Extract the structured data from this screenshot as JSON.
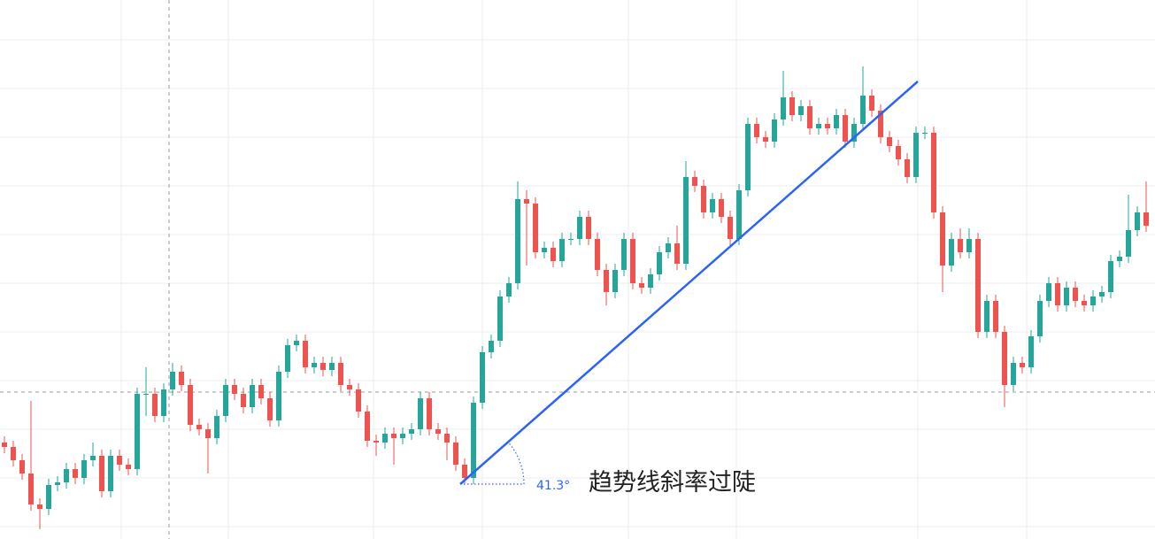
{
  "chart_data": {
    "type": "candlestick",
    "open": [
      100,
      95,
      80,
      65,
      30,
      25,
      52,
      55,
      70,
      60,
      80,
      85,
      45,
      85,
      75,
      70,
      155,
      155,
      130,
      160,
      180,
      165,
      120,
      115,
      105,
      130,
      165,
      155,
      140,
      165,
      150,
      125,
      180,
      210,
      215,
      185,
      190,
      182,
      190,
      165,
      160,
      135,
      102,
      100,
      110,
      105,
      110,
      115,
      150,
      115,
      110,
      100,
      75,
      60,
      145,
      202,
      215,
      265,
      280,
      375,
      370,
      315,
      320,
      305,
      330,
      330,
      355,
      330,
      295,
      270,
      295,
      330,
      280,
      275,
      290,
      315,
      325,
      302,
      400,
      390,
      360,
      375,
      355,
      330,
      385,
      460,
      445,
      440,
      465,
      490,
      470,
      480,
      455,
      460,
      455,
      470,
      440,
      460,
      492,
      475,
      445,
      435,
      420,
      400,
      450,
      450,
      360,
      300,
      330,
      315,
      330,
      225,
      260,
      225,
      165,
      190,
      185,
      220,
      260,
      280,
      255,
      275,
      260,
      255,
      265,
      270,
      305,
      310,
      340,
      360
    ],
    "high": [
      107,
      102,
      87,
      147,
      37,
      59,
      62,
      77,
      77,
      87,
      100,
      92,
      92,
      92,
      82,
      162,
      185,
      162,
      167,
      190,
      187,
      172,
      127,
      122,
      137,
      172,
      172,
      162,
      172,
      172,
      157,
      187,
      217,
      222,
      222,
      197,
      197,
      197,
      197,
      172,
      167,
      142,
      109,
      117,
      117,
      117,
      122,
      157,
      157,
      122,
      117,
      107,
      82,
      152,
      209,
      222,
      272,
      287,
      395,
      385,
      377,
      327,
      327,
      337,
      337,
      362,
      362,
      337,
      302,
      302,
      337,
      337,
      287,
      297,
      322,
      332,
      345,
      418,
      407,
      397,
      382,
      382,
      362,
      392,
      467,
      467,
      452,
      472,
      520,
      497,
      487,
      487,
      467,
      467,
      477,
      477,
      467,
      525,
      499,
      482,
      452,
      442,
      427,
      457,
      457,
      457,
      367,
      337,
      342,
      342,
      337,
      267,
      267,
      232,
      197,
      197,
      227,
      267,
      287,
      287,
      282,
      282,
      267,
      272,
      277,
      312,
      317,
      380,
      367,
      395
    ],
    "low": [
      88,
      73,
      58,
      23,
      2,
      18,
      45,
      48,
      53,
      53,
      73,
      38,
      38,
      68,
      63,
      63,
      130,
      123,
      123,
      153,
      158,
      113,
      108,
      65,
      98,
      123,
      148,
      133,
      133,
      143,
      118,
      118,
      173,
      203,
      178,
      178,
      175,
      175,
      158,
      153,
      128,
      95,
      85,
      93,
      75,
      98,
      103,
      108,
      108,
      103,
      80,
      68,
      53,
      53,
      138,
      195,
      208,
      258,
      273,
      300,
      308,
      308,
      298,
      298,
      323,
      323,
      323,
      288,
      255,
      263,
      288,
      273,
      268,
      268,
      283,
      308,
      295,
      295,
      383,
      353,
      353,
      348,
      323,
      323,
      378,
      438,
      433,
      433,
      458,
      463,
      463,
      448,
      448,
      448,
      448,
      433,
      433,
      453,
      468,
      438,
      428,
      413,
      393,
      393,
      443,
      353,
      270,
      293,
      308,
      308,
      218,
      218,
      218,
      140,
      158,
      178,
      178,
      213,
      253,
      248,
      248,
      253,
      248,
      248,
      258,
      263,
      298,
      303,
      333,
      338
    ],
    "close": [
      95,
      80,
      65,
      30,
      25,
      52,
      55,
      70,
      60,
      80,
      85,
      45,
      85,
      75,
      70,
      155,
      155,
      130,
      160,
      180,
      165,
      120,
      115,
      105,
      130,
      165,
      155,
      140,
      165,
      150,
      125,
      180,
      210,
      215,
      185,
      190,
      182,
      190,
      165,
      160,
      135,
      102,
      100,
      110,
      105,
      110,
      115,
      150,
      115,
      110,
      100,
      75,
      60,
      145,
      202,
      215,
      265,
      280,
      375,
      370,
      315,
      320,
      305,
      330,
      330,
      355,
      330,
      295,
      270,
      295,
      330,
      280,
      275,
      290,
      315,
      325,
      302,
      400,
      390,
      360,
      375,
      355,
      330,
      385,
      460,
      445,
      440,
      465,
      490,
      470,
      480,
      455,
      460,
      455,
      470,
      440,
      460,
      492,
      475,
      445,
      435,
      420,
      400,
      450,
      450,
      360,
      300,
      330,
      315,
      330,
      225,
      260,
      225,
      165,
      190,
      185,
      220,
      260,
      280,
      255,
      275,
      260,
      255,
      265,
      270,
      305,
      310,
      340,
      360,
      345
    ],
    "ylim": [
      -9,
      600
    ],
    "up_color": "#26a69a",
    "down_color": "#ef5350",
    "trendline": {
      "x": [
        51.5,
        103.2
      ],
      "y": [
        53,
        508
      ],
      "color": "#2962ff"
    },
    "angle": {
      "value": 41.3,
      "label": "41.3°"
    },
    "annotation": "趋势线斜率过陡"
  }
}
